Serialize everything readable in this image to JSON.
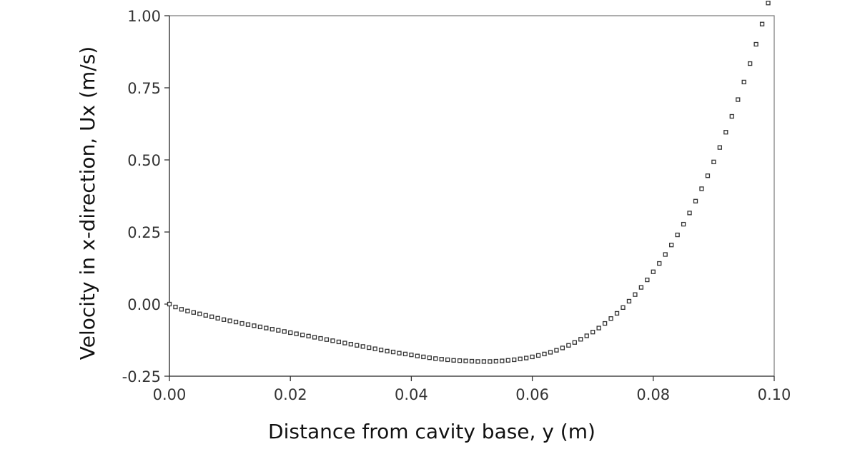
{
  "chart_data": {
    "type": "scatter",
    "title": "",
    "xlabel": "Distance from cavity base, y (m)",
    "ylabel": "Velocity in x-direction, Ux (m/s)",
    "xlim": [
      0.0,
      0.1
    ],
    "ylim": [
      -0.25,
      1.0
    ],
    "x_ticks": [
      "0.00",
      "0.02",
      "0.04",
      "0.06",
      "0.08",
      "0.10"
    ],
    "y_ticks": [
      "1.00",
      "0.75",
      "0.50",
      "0.25",
      "0.00",
      "-0.25"
    ],
    "grid": false,
    "legend": "none",
    "marker": "open-square",
    "series": [
      {
        "x": [
          0.0,
          0.001,
          0.002,
          0.003,
          0.004,
          0.005,
          0.006,
          0.007,
          0.008,
          0.009,
          0.01,
          0.011,
          0.012,
          0.013,
          0.014,
          0.015,
          0.016,
          0.017,
          0.018,
          0.019,
          0.02,
          0.021,
          0.022,
          0.023,
          0.024,
          0.025,
          0.026,
          0.027,
          0.028,
          0.029,
          0.03,
          0.031,
          0.032,
          0.033,
          0.034,
          0.035,
          0.036,
          0.037,
          0.038,
          0.039,
          0.04,
          0.041,
          0.042,
          0.043,
          0.044,
          0.045,
          0.046,
          0.047,
          0.048,
          0.049,
          0.05,
          0.051,
          0.052,
          0.053,
          0.054,
          0.055,
          0.056,
          0.057,
          0.058,
          0.059,
          0.06,
          0.061,
          0.062,
          0.063,
          0.064,
          0.065,
          0.066,
          0.067,
          0.068,
          0.069,
          0.07,
          0.071,
          0.072,
          0.073,
          0.074,
          0.075,
          0.076,
          0.077,
          0.078,
          0.079,
          0.08,
          0.081,
          0.082,
          0.083,
          0.084,
          0.085,
          0.086,
          0.087,
          0.088,
          0.089,
          0.09,
          0.091,
          0.092,
          0.093,
          0.094,
          0.095,
          0.096,
          0.097,
          0.098,
          0.099
        ],
        "values": [
          0.0,
          -0.01,
          -0.018,
          -0.024,
          -0.029,
          -0.034,
          -0.039,
          -0.044,
          -0.049,
          -0.054,
          -0.058,
          -0.062,
          -0.067,
          -0.071,
          -0.075,
          -0.079,
          -0.083,
          -0.087,
          -0.091,
          -0.095,
          -0.099,
          -0.103,
          -0.107,
          -0.111,
          -0.115,
          -0.119,
          -0.123,
          -0.127,
          -0.131,
          -0.135,
          -0.139,
          -0.143,
          -0.147,
          -0.151,
          -0.155,
          -0.159,
          -0.163,
          -0.166,
          -0.17,
          -0.173,
          -0.176,
          -0.18,
          -0.183,
          -0.186,
          -0.189,
          -0.191,
          -0.193,
          -0.195,
          -0.196,
          -0.197,
          -0.198,
          -0.199,
          -0.199,
          -0.199,
          -0.198,
          -0.197,
          -0.195,
          -0.193,
          -0.19,
          -0.187,
          -0.183,
          -0.178,
          -0.173,
          -0.167,
          -0.16,
          -0.152,
          -0.143,
          -0.133,
          -0.122,
          -0.11,
          -0.097,
          -0.083,
          -0.067,
          -0.05,
          -0.032,
          -0.012,
          0.01,
          0.033,
          0.058,
          0.084,
          0.112,
          0.141,
          0.172,
          0.205,
          0.24,
          0.277,
          0.316,
          0.357,
          0.4,
          0.445,
          0.493,
          0.543,
          0.596,
          0.651,
          0.709,
          0.77,
          0.834,
          0.901,
          0.971,
          1.044
        ]
      }
    ]
  }
}
